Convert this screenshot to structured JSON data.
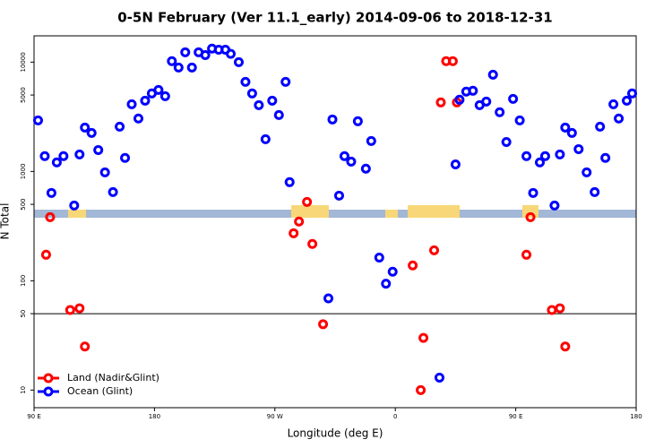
{
  "chart_data": {
    "type": "scatter",
    "title": "0-5N February (Ver 11.1_early)   2014-09-06 to 2018-12-31",
    "x_label": "Longitude (deg E)",
    "y_label": "N Total",
    "log_y": true,
    "xlim": [
      90,
      540
    ],
    "ylim": [
      6.9,
      17400
    ],
    "xticks": [
      {
        "value": 90,
        "label": "90 E"
      },
      180,
      {
        "value": 270,
        "label": "90 W"
      },
      {
        "value": 360,
        "label": "0"
      },
      {
        "value": 450,
        "label": "90 E"
      },
      {
        "value": 540,
        "label": "180"
      }
    ],
    "yticks": [
      10,
      50,
      100,
      500,
      1000,
      5000,
      10000
    ],
    "hline": 50,
    "legend": "bottom-left",
    "series": [
      {
        "name": "Land (Nadir&Glint)",
        "color": "#ff0000",
        "x": [
          102,
          99,
          117,
          124,
          128,
          284,
          288,
          294,
          298,
          306,
          373,
          379,
          381,
          389,
          394,
          398,
          403,
          406,
          461,
          458,
          477,
          483,
          487
        ],
        "values": [
          382,
          173,
          54,
          56,
          25,
          272,
          348,
          526,
          217,
          40,
          138,
          10,
          30,
          190,
          4280,
          10200,
          10200,
          4280,
          382,
          173,
          54,
          56,
          25
        ]
      },
      {
        "name": "Ocean (Glint)",
        "color": "#0000ff",
        "x": [
          93,
          98,
          103,
          107,
          112,
          120,
          124,
          128,
          133,
          138,
          143,
          149,
          154,
          158,
          163,
          168,
          173,
          178,
          183,
          188,
          193,
          198,
          203,
          208,
          213,
          218,
          223,
          228,
          233,
          237,
          243,
          248,
          253,
          258,
          263,
          268,
          273,
          278,
          281,
          310,
          313,
          318,
          322,
          327,
          332,
          338,
          342,
          348,
          353,
          358,
          393,
          405,
          408,
          413,
          418,
          423,
          428,
          433,
          438,
          443,
          448,
          453,
          458,
          463,
          468,
          472,
          479,
          483,
          487,
          492,
          497,
          503,
          509,
          513,
          517,
          523,
          527,
          533,
          537
        ],
        "values": [
          2930,
          1380,
          636,
          1210,
          1380,
          488,
          1430,
          2520,
          2250,
          1570,
          980,
          648,
          2570,
          1330,
          4120,
          3050,
          4440,
          5170,
          5570,
          4880,
          10200,
          8930,
          12300,
          8930,
          12300,
          11600,
          13300,
          13000,
          13000,
          11900,
          10000,
          6600,
          5170,
          4040,
          1970,
          4440,
          3280,
          6600,
          798,
          69,
          2990,
          601,
          1380,
          1230,
          2880,
          1060,
          1900,
          163,
          94,
          121,
          13,
          1160,
          4530,
          5370,
          5470,
          4040,
          4360,
          7680,
          3480,
          1860,
          4610,
          2930,
          1380,
          636,
          1210,
          1380,
          488,
          1430,
          2520,
          2250,
          1600,
          980,
          648,
          2570,
          1330,
          4120,
          3050,
          4440,
          5170
        ]
      }
    ]
  }
}
